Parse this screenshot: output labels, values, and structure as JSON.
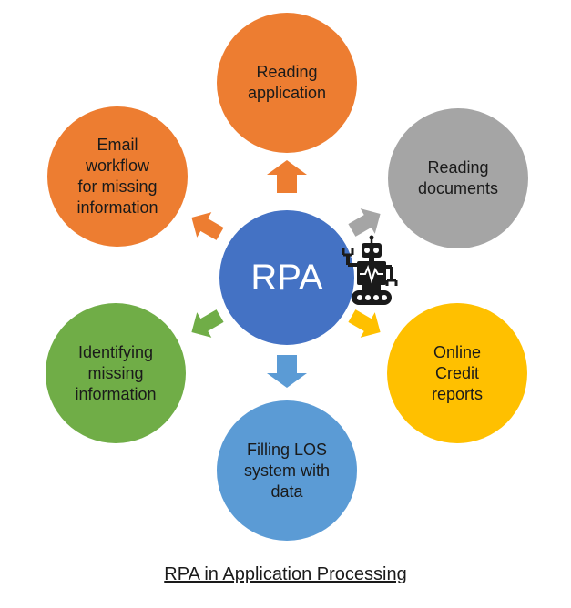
{
  "center": {
    "label": "RPA",
    "color": "#4472C4"
  },
  "nodes": [
    {
      "id": "reading-application",
      "label": "Reading\napplication",
      "color": "#ED7D31"
    },
    {
      "id": "reading-documents",
      "label": "Reading\ndocuments",
      "color": "#A5A5A5"
    },
    {
      "id": "online-credit-reports",
      "label": "Online\nCredit\nreports",
      "color": "#FFC000"
    },
    {
      "id": "filling-los",
      "label": "Filling LOS\nsystem with\ndata",
      "color": "#5B9BD5"
    },
    {
      "id": "identifying-missing",
      "label": "Identifying\nmissing\ninformation",
      "color": "#70AD47"
    },
    {
      "id": "email-workflow",
      "label": "Email\nworkflow\nfor missing\ninformation",
      "color": "#ED7D31"
    }
  ],
  "caption": "RPA in Application Processing",
  "icons": [
    "robot-icon"
  ]
}
